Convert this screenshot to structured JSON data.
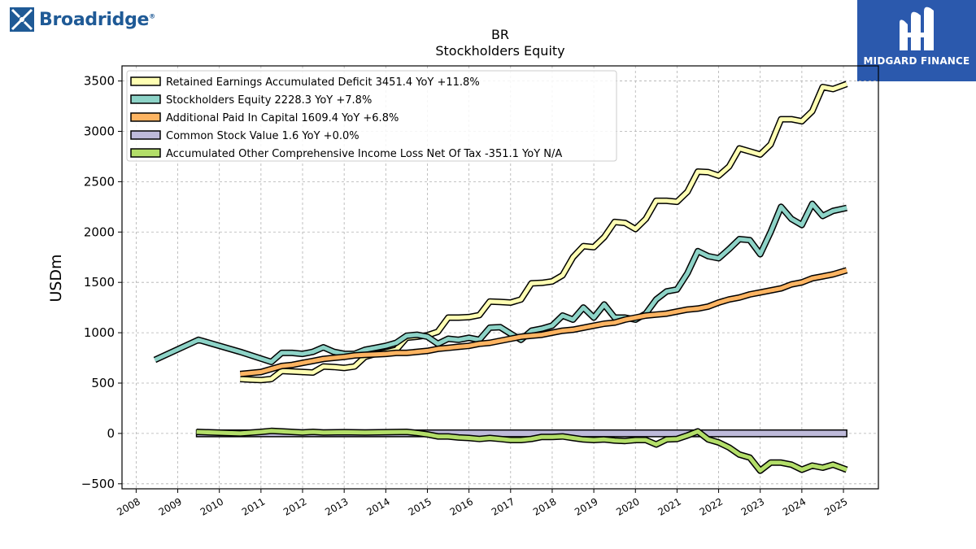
{
  "header": {
    "left_logo_text": "Broadridge",
    "left_logo_tm": "®",
    "right_logo_text": "MIDGARD FINANCE"
  },
  "colors": {
    "retained": "#ffffb3",
    "equity": "#8dd3c7",
    "apic": "#fdb462",
    "common": "#bebada",
    "aoci": "#b3de69",
    "brand_blue": "#1f5a96",
    "midgard_bg": "#2b59ad"
  },
  "chart_data": {
    "type": "line",
    "title": "BR",
    "subtitle": "Stockholders  Equity",
    "xlabel": "",
    "ylabel": "USDm",
    "ylim": [
      -550,
      3650
    ],
    "xlim": [
      2007.66,
      2025.84
    ],
    "yticks": [
      3500,
      3000,
      2500,
      2000,
      1500,
      1000,
      500,
      0,
      -500
    ],
    "ytick_labels": [
      "3500",
      "3000",
      "2500",
      "2000",
      "1500",
      "1000",
      "500",
      "0",
      "−500"
    ],
    "xticks": [
      2008,
      2009,
      2010,
      2011,
      2012,
      2013,
      2014,
      2015,
      2016,
      2017,
      2018,
      2019,
      2020,
      2021,
      2022,
      2023,
      2024,
      2025
    ],
    "grid": true,
    "legend_position": "top-left",
    "series": [
      {
        "name": "Retained Earnings Accumulated Deficit  3451.4 YoY +11.8%",
        "color_key": "retained",
        "points": [
          [
            2010.5,
            540
          ],
          [
            2010.75,
            535
          ],
          [
            2011.0,
            530
          ],
          [
            2011.25,
            540
          ],
          [
            2011.5,
            620
          ],
          [
            2011.75,
            615
          ],
          [
            2012.0,
            610
          ],
          [
            2012.25,
            605
          ],
          [
            2012.5,
            665
          ],
          [
            2012.75,
            660
          ],
          [
            2013.0,
            650
          ],
          [
            2013.25,
            665
          ],
          [
            2013.5,
            760
          ],
          [
            2013.75,
            790
          ],
          [
            2014.0,
            805
          ],
          [
            2014.25,
            830
          ],
          [
            2014.5,
            950
          ],
          [
            2014.75,
            960
          ],
          [
            2015.0,
            975
          ],
          [
            2015.25,
            1010
          ],
          [
            2015.5,
            1150
          ],
          [
            2015.75,
            1150
          ],
          [
            2016.0,
            1155
          ],
          [
            2016.25,
            1175
          ],
          [
            2016.5,
            1310
          ],
          [
            2016.75,
            1305
          ],
          [
            2017.0,
            1300
          ],
          [
            2017.25,
            1330
          ],
          [
            2017.5,
            1490
          ],
          [
            2017.75,
            1495
          ],
          [
            2018.0,
            1510
          ],
          [
            2018.25,
            1570
          ],
          [
            2018.5,
            1750
          ],
          [
            2018.75,
            1860
          ],
          [
            2019.0,
            1850
          ],
          [
            2019.25,
            1950
          ],
          [
            2019.5,
            2100
          ],
          [
            2019.75,
            2090
          ],
          [
            2020.0,
            2030
          ],
          [
            2020.25,
            2130
          ],
          [
            2020.5,
            2310
          ],
          [
            2020.75,
            2310
          ],
          [
            2021.0,
            2300
          ],
          [
            2021.25,
            2400
          ],
          [
            2021.5,
            2600
          ],
          [
            2021.75,
            2595
          ],
          [
            2022.0,
            2560
          ],
          [
            2022.25,
            2650
          ],
          [
            2022.5,
            2830
          ],
          [
            2022.75,
            2800
          ],
          [
            2023.0,
            2770
          ],
          [
            2023.25,
            2870
          ],
          [
            2023.5,
            3120
          ],
          [
            2023.75,
            3120
          ],
          [
            2024.0,
            3100
          ],
          [
            2024.25,
            3200
          ],
          [
            2024.5,
            3440
          ],
          [
            2024.75,
            3420
          ],
          [
            2025.08,
            3470
          ]
        ]
      },
      {
        "name": "Stockholders Equity  2228.3 YoY +7.8%",
        "color_key": "equity",
        "points": [
          [
            2008.45,
            730
          ],
          [
            2009.5,
            930
          ],
          [
            2010.5,
            810
          ],
          [
            2011.25,
            710
          ],
          [
            2011.5,
            800
          ],
          [
            2011.75,
            800
          ],
          [
            2012.0,
            790
          ],
          [
            2012.25,
            810
          ],
          [
            2012.5,
            855
          ],
          [
            2012.75,
            810
          ],
          [
            2013.0,
            790
          ],
          [
            2013.25,
            790
          ],
          [
            2013.5,
            830
          ],
          [
            2013.75,
            850
          ],
          [
            2014.0,
            870
          ],
          [
            2014.25,
            900
          ],
          [
            2014.5,
            970
          ],
          [
            2014.75,
            980
          ],
          [
            2015.0,
            960
          ],
          [
            2015.25,
            890
          ],
          [
            2015.5,
            940
          ],
          [
            2015.75,
            930
          ],
          [
            2016.0,
            950
          ],
          [
            2016.25,
            930
          ],
          [
            2016.5,
            1050
          ],
          [
            2016.75,
            1055
          ],
          [
            2017.0,
            990
          ],
          [
            2017.25,
            930
          ],
          [
            2017.5,
            1020
          ],
          [
            2017.75,
            1040
          ],
          [
            2018.0,
            1070
          ],
          [
            2018.25,
            1170
          ],
          [
            2018.5,
            1130
          ],
          [
            2018.75,
            1250
          ],
          [
            2019.0,
            1150
          ],
          [
            2019.25,
            1280
          ],
          [
            2019.5,
            1150
          ],
          [
            2019.75,
            1150
          ],
          [
            2020.0,
            1130
          ],
          [
            2020.25,
            1190
          ],
          [
            2020.5,
            1330
          ],
          [
            2020.75,
            1410
          ],
          [
            2021.0,
            1430
          ],
          [
            2021.25,
            1590
          ],
          [
            2021.5,
            1810
          ],
          [
            2021.75,
            1760
          ],
          [
            2022.0,
            1740
          ],
          [
            2022.25,
            1830
          ],
          [
            2022.5,
            1930
          ],
          [
            2022.75,
            1920
          ],
          [
            2023.0,
            1780
          ],
          [
            2023.25,
            2000
          ],
          [
            2023.5,
            2250
          ],
          [
            2023.75,
            2130
          ],
          [
            2024.0,
            2070
          ],
          [
            2024.25,
            2280
          ],
          [
            2024.5,
            2160
          ],
          [
            2024.75,
            2210
          ],
          [
            2025.08,
            2240
          ]
        ]
      },
      {
        "name": "Additional Paid In Capital  1609.4 YoY +6.8%",
        "color_key": "apic",
        "points": [
          [
            2010.5,
            590
          ],
          [
            2011.0,
            610
          ],
          [
            2011.25,
            640
          ],
          [
            2011.5,
            670
          ],
          [
            2011.75,
            680
          ],
          [
            2012.0,
            700
          ],
          [
            2012.25,
            720
          ],
          [
            2012.5,
            740
          ],
          [
            2012.75,
            750
          ],
          [
            2013.0,
            760
          ],
          [
            2013.25,
            775
          ],
          [
            2013.5,
            780
          ],
          [
            2013.75,
            785
          ],
          [
            2014.0,
            790
          ],
          [
            2014.25,
            800
          ],
          [
            2014.5,
            800
          ],
          [
            2014.75,
            810
          ],
          [
            2015.0,
            820
          ],
          [
            2015.25,
            840
          ],
          [
            2015.5,
            850
          ],
          [
            2015.75,
            860
          ],
          [
            2016.0,
            870
          ],
          [
            2016.25,
            890
          ],
          [
            2016.5,
            900
          ],
          [
            2016.75,
            920
          ],
          [
            2017.0,
            940
          ],
          [
            2017.25,
            960
          ],
          [
            2017.5,
            970
          ],
          [
            2017.75,
            980
          ],
          [
            2018.0,
            1000
          ],
          [
            2018.25,
            1020
          ],
          [
            2018.5,
            1030
          ],
          [
            2018.75,
            1050
          ],
          [
            2019.0,
            1070
          ],
          [
            2019.25,
            1090
          ],
          [
            2019.5,
            1100
          ],
          [
            2019.75,
            1130
          ],
          [
            2020.0,
            1150
          ],
          [
            2020.25,
            1170
          ],
          [
            2020.5,
            1180
          ],
          [
            2020.75,
            1190
          ],
          [
            2021.0,
            1210
          ],
          [
            2021.25,
            1230
          ],
          [
            2021.5,
            1240
          ],
          [
            2021.75,
            1260
          ],
          [
            2022.0,
            1300
          ],
          [
            2022.25,
            1330
          ],
          [
            2022.5,
            1350
          ],
          [
            2022.75,
            1380
          ],
          [
            2023.0,
            1400
          ],
          [
            2023.25,
            1420
          ],
          [
            2023.5,
            1440
          ],
          [
            2023.75,
            1480
          ],
          [
            2024.0,
            1500
          ],
          [
            2024.25,
            1540
          ],
          [
            2024.5,
            1560
          ],
          [
            2024.75,
            1580
          ],
          [
            2025.08,
            1620
          ]
        ]
      },
      {
        "name": "Common Stock Value  1.6 YoY +0.0%",
        "color_key": "common",
        "fill_to_zero": true,
        "points": [
          [
            2009.45,
            1.6
          ],
          [
            2025.08,
            1.6
          ]
        ]
      },
      {
        "name": "Accumulated Other Comprehensive Income Loss Net Of Tax  -351.1 YoY N/A",
        "color_key": "aoci",
        "points": [
          [
            2009.45,
            15
          ],
          [
            2010.5,
            0
          ],
          [
            2011.0,
            15
          ],
          [
            2011.25,
            25
          ],
          [
            2011.5,
            20
          ],
          [
            2012.0,
            10
          ],
          [
            2012.25,
            15
          ],
          [
            2012.5,
            10
          ],
          [
            2013.0,
            12
          ],
          [
            2013.5,
            10
          ],
          [
            2014.0,
            12
          ],
          [
            2014.5,
            15
          ],
          [
            2014.75,
            5
          ],
          [
            2015.0,
            -10
          ],
          [
            2015.25,
            -30
          ],
          [
            2015.5,
            -30
          ],
          [
            2015.75,
            -40
          ],
          [
            2016.0,
            -45
          ],
          [
            2016.25,
            -55
          ],
          [
            2016.5,
            -45
          ],
          [
            2016.75,
            -55
          ],
          [
            2017.0,
            -65
          ],
          [
            2017.25,
            -65
          ],
          [
            2017.5,
            -55
          ],
          [
            2017.75,
            -35
          ],
          [
            2018.0,
            -35
          ],
          [
            2018.25,
            -30
          ],
          [
            2018.5,
            -45
          ],
          [
            2018.75,
            -60
          ],
          [
            2019.0,
            -65
          ],
          [
            2019.25,
            -60
          ],
          [
            2019.5,
            -70
          ],
          [
            2019.75,
            -75
          ],
          [
            2020.0,
            -65
          ],
          [
            2020.25,
            -65
          ],
          [
            2020.5,
            -110
          ],
          [
            2020.75,
            -60
          ],
          [
            2021.0,
            -55
          ],
          [
            2021.25,
            -20
          ],
          [
            2021.5,
            20
          ],
          [
            2021.75,
            -60
          ],
          [
            2022.0,
            -90
          ],
          [
            2022.25,
            -140
          ],
          [
            2022.5,
            -210
          ],
          [
            2022.75,
            -240
          ],
          [
            2023.0,
            -370
          ],
          [
            2023.25,
            -290
          ],
          [
            2023.5,
            -290
          ],
          [
            2023.75,
            -310
          ],
          [
            2024.0,
            -360
          ],
          [
            2024.25,
            -320
          ],
          [
            2024.5,
            -340
          ],
          [
            2024.75,
            -310
          ],
          [
            2025.08,
            -360
          ]
        ]
      }
    ]
  }
}
